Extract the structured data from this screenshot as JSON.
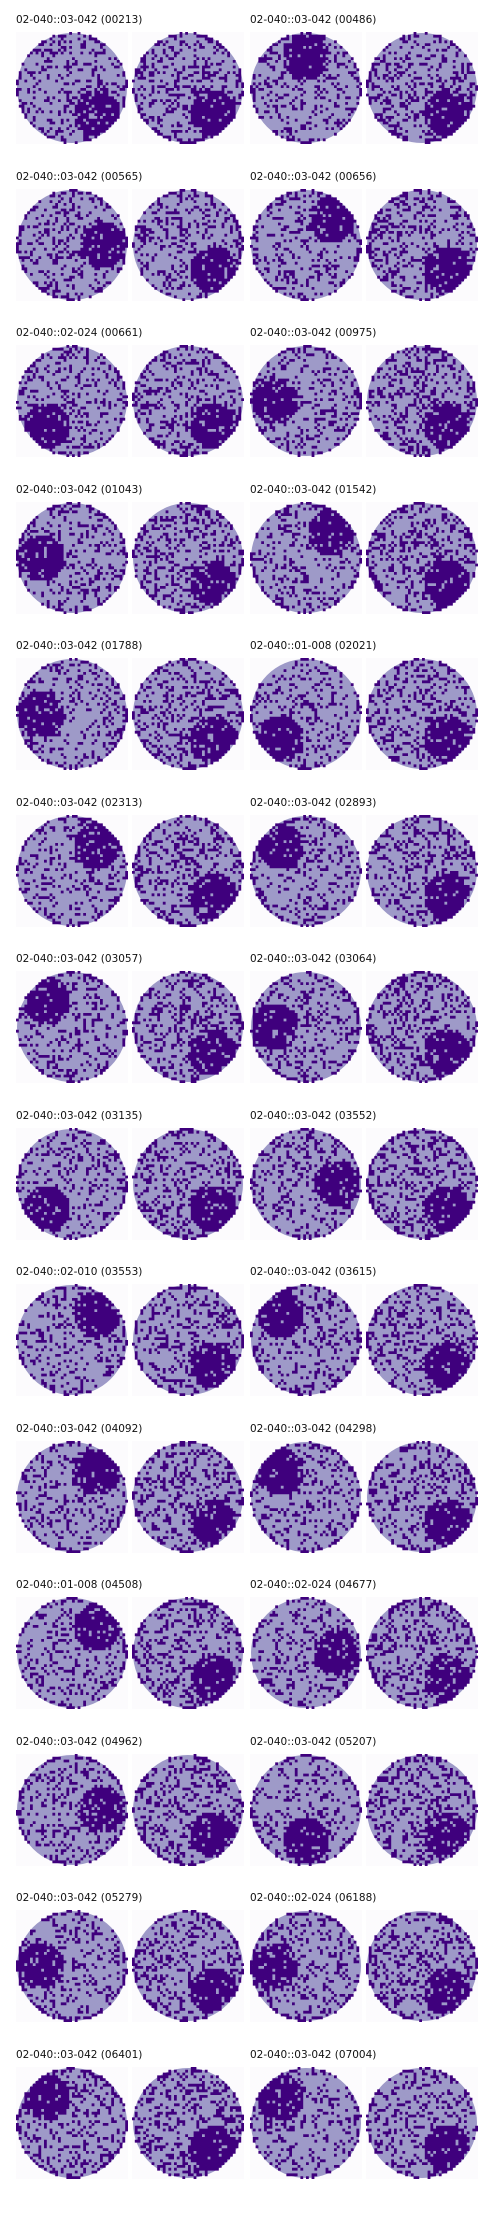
{
  "colors": {
    "background": "#ffffff",
    "wafer_bg": "#9e9ac8",
    "defect": "#3f007d",
    "offwafer": "#fcfbfd"
  },
  "panels": [
    {
      "label": "02-040::03-042 (00213)",
      "cluster": "bottom-right"
    },
    {
      "label": "02-040::03-042 (00486)",
      "cluster": "top"
    },
    {
      "label": "02-040::03-042 (00565)",
      "cluster": "right"
    },
    {
      "label": "02-040::03-042 (00656)",
      "cluster": "top-right"
    },
    {
      "label": "02-040::02-024 (00661)",
      "cluster": "bottom-left"
    },
    {
      "label": "02-040::03-042 (00975)",
      "cluster": "left"
    },
    {
      "label": "02-040::03-042 (01043)",
      "cluster": "left"
    },
    {
      "label": "02-040::03-042 (01542)",
      "cluster": "top-right"
    },
    {
      "label": "02-040::03-042 (01788)",
      "cluster": "left"
    },
    {
      "label": "02-040::01-008 (02021)",
      "cluster": "bottom-left"
    },
    {
      "label": "02-040::03-042 (02313)",
      "cluster": "top-right"
    },
    {
      "label": "02-040::03-042 (02893)",
      "cluster": "top-left"
    },
    {
      "label": "02-040::03-042 (03057)",
      "cluster": "top-left"
    },
    {
      "label": "02-040::03-042 (03064)",
      "cluster": "left"
    },
    {
      "label": "02-040::03-042 (03135)",
      "cluster": "bottom-left"
    },
    {
      "label": "02-040::03-042 (03552)",
      "cluster": "right"
    },
    {
      "label": "02-040::02-010 (03553)",
      "cluster": "top-right"
    },
    {
      "label": "02-040::03-042 (03615)",
      "cluster": "top-left"
    },
    {
      "label": "02-040::03-042 (04092)",
      "cluster": "top-right"
    },
    {
      "label": "02-040::03-042 (04298)",
      "cluster": "top-left"
    },
    {
      "label": "02-040::01-008 (04508)",
      "cluster": "top-right"
    },
    {
      "label": "02-040::02-024 (04677)",
      "cluster": "right"
    },
    {
      "label": "02-040::03-042 (04962)",
      "cluster": "right"
    },
    {
      "label": "02-040::03-042 (05207)",
      "cluster": "bottom"
    },
    {
      "label": "02-040::03-042 (05279)",
      "cluster": "left"
    },
    {
      "label": "02-040::02-024 (06188)",
      "cluster": "left"
    },
    {
      "label": "02-040::03-042 (06401)",
      "cluster": "top-left"
    },
    {
      "label": "02-040::03-042 (07004)",
      "cluster": "top-left"
    }
  ]
}
